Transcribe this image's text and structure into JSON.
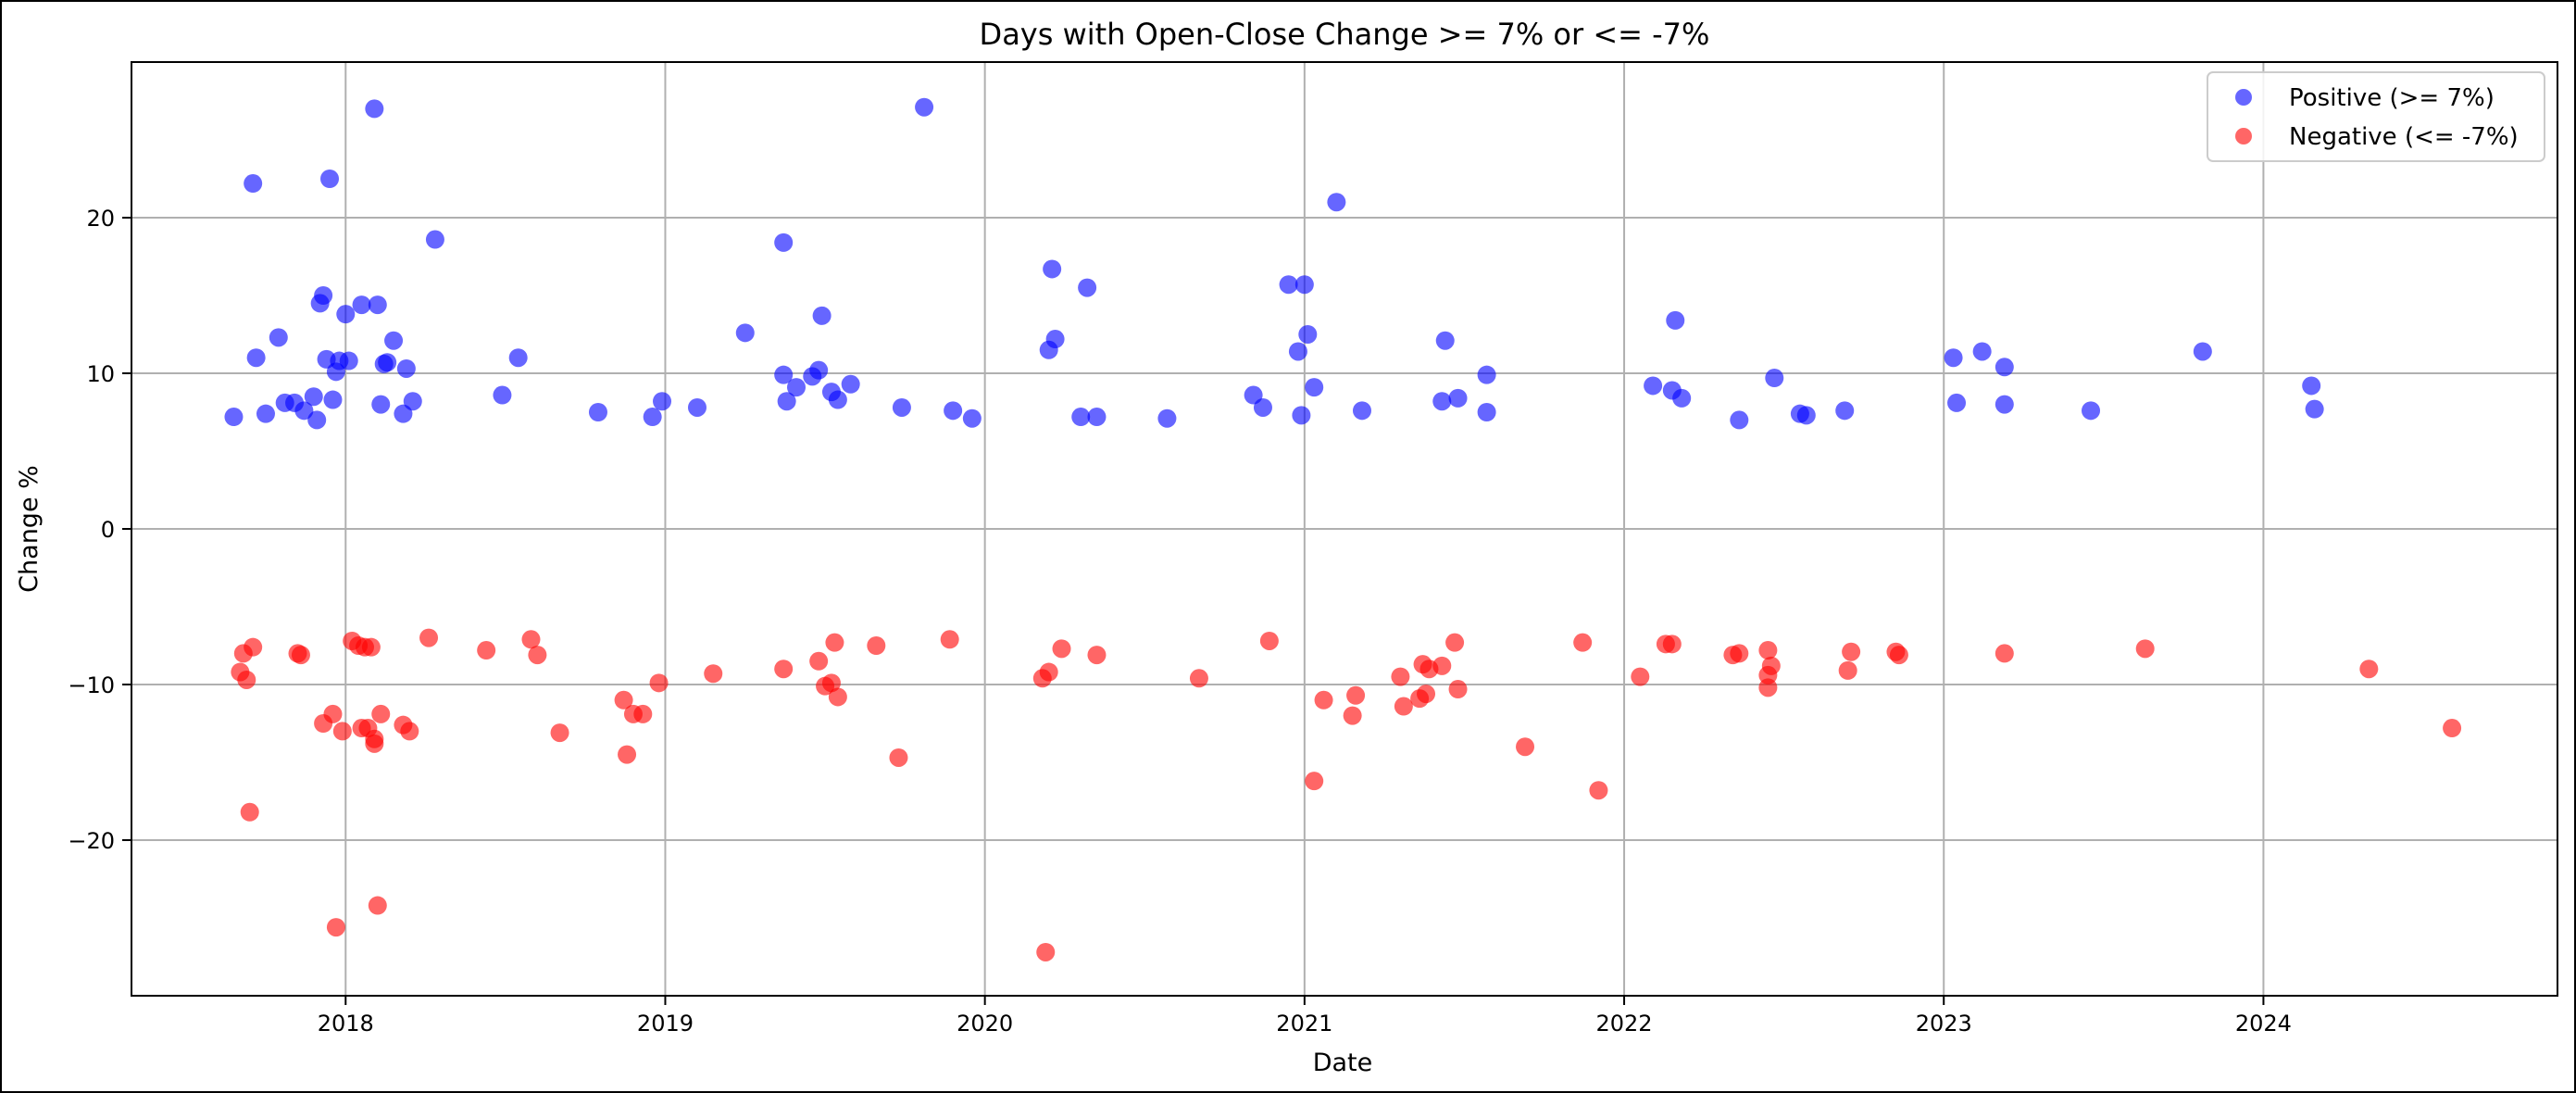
{
  "chart_data": {
    "type": "scatter",
    "title": "Days with Open-Close Change >= 7% or <= -7%",
    "xlabel": "Date",
    "ylabel": "Change %",
    "x_ticks": [
      "2018",
      "2019",
      "2020",
      "2021",
      "2022",
      "2023",
      "2024"
    ],
    "y_ticks": [
      "−20",
      "−10",
      "0",
      "10",
      "20"
    ],
    "y_tick_values": [
      -20,
      -10,
      0,
      10,
      20
    ],
    "xlim": [
      2017.33,
      2024.92
    ],
    "ylim": [
      -30,
      30
    ],
    "grid": true,
    "legend_position": "top-right",
    "series": [
      {
        "name": "Positive (>= 7%)",
        "color": "#0000ff",
        "points": [
          [
            2017.65,
            7.2
          ],
          [
            2017.71,
            22.2
          ],
          [
            2017.72,
            11.0
          ],
          [
            2017.75,
            7.4
          ],
          [
            2017.79,
            12.3
          ],
          [
            2017.81,
            8.1
          ],
          [
            2017.84,
            8.1
          ],
          [
            2017.87,
            7.6
          ],
          [
            2017.9,
            8.5
          ],
          [
            2017.91,
            7.0
          ],
          [
            2017.92,
            14.5
          ],
          [
            2017.93,
            15.0
          ],
          [
            2017.94,
            10.9
          ],
          [
            2017.95,
            22.5
          ],
          [
            2017.96,
            8.3
          ],
          [
            2017.97,
            10.1
          ],
          [
            2017.98,
            10.8
          ],
          [
            2018.0,
            13.8
          ],
          [
            2018.01,
            10.8
          ],
          [
            2018.05,
            14.4
          ],
          [
            2018.09,
            27.0
          ],
          [
            2018.1,
            14.4
          ],
          [
            2018.11,
            8.0
          ],
          [
            2018.12,
            10.6
          ],
          [
            2018.13,
            10.7
          ],
          [
            2018.15,
            12.1
          ],
          [
            2018.18,
            7.4
          ],
          [
            2018.19,
            10.3
          ],
          [
            2018.21,
            8.2
          ],
          [
            2018.28,
            18.6
          ],
          [
            2018.49,
            8.6
          ],
          [
            2018.54,
            11.0
          ],
          [
            2018.79,
            7.5
          ],
          [
            2018.96,
            7.2
          ],
          [
            2018.99,
            8.2
          ],
          [
            2019.1,
            7.8
          ],
          [
            2019.25,
            12.6
          ],
          [
            2019.37,
            18.4
          ],
          [
            2019.37,
            9.9
          ],
          [
            2019.38,
            8.2
          ],
          [
            2019.41,
            9.1
          ],
          [
            2019.46,
            9.8
          ],
          [
            2019.48,
            10.2
          ],
          [
            2019.49,
            13.7
          ],
          [
            2019.52,
            8.8
          ],
          [
            2019.54,
            8.3
          ],
          [
            2019.58,
            9.3
          ],
          [
            2019.74,
            7.8
          ],
          [
            2019.81,
            27.1
          ],
          [
            2019.9,
            7.6
          ],
          [
            2019.96,
            7.1
          ],
          [
            2020.2,
            11.5
          ],
          [
            2020.21,
            16.7
          ],
          [
            2020.22,
            12.2
          ],
          [
            2020.3,
            7.2
          ],
          [
            2020.32,
            15.5
          ],
          [
            2020.35,
            7.2
          ],
          [
            2020.57,
            7.1
          ],
          [
            2020.84,
            8.6
          ],
          [
            2020.87,
            7.8
          ],
          [
            2020.95,
            15.7
          ],
          [
            2020.98,
            11.4
          ],
          [
            2020.99,
            7.3
          ],
          [
            2021.0,
            15.7
          ],
          [
            2021.01,
            12.5
          ],
          [
            2021.03,
            9.1
          ],
          [
            2021.1,
            21.0
          ],
          [
            2021.18,
            7.6
          ],
          [
            2021.43,
            8.2
          ],
          [
            2021.44,
            12.1
          ],
          [
            2021.48,
            8.4
          ],
          [
            2021.57,
            9.9
          ],
          [
            2021.57,
            7.5
          ],
          [
            2022.09,
            9.2
          ],
          [
            2022.15,
            8.9
          ],
          [
            2022.16,
            13.4
          ],
          [
            2022.18,
            8.4
          ],
          [
            2022.36,
            7.0
          ],
          [
            2022.47,
            9.7
          ],
          [
            2022.55,
            7.4
          ],
          [
            2022.57,
            7.3
          ],
          [
            2022.69,
            7.6
          ],
          [
            2023.03,
            11.0
          ],
          [
            2023.04,
            8.1
          ],
          [
            2023.12,
            11.4
          ],
          [
            2023.19,
            10.4
          ],
          [
            2023.19,
            8.0
          ],
          [
            2023.46,
            7.6
          ],
          [
            2023.81,
            11.4
          ],
          [
            2024.15,
            9.2
          ],
          [
            2024.16,
            7.7
          ]
        ]
      },
      {
        "name": "Negative (<= -7%)",
        "color": "#ff0000",
        "points": [
          [
            2017.67,
            -9.2
          ],
          [
            2017.68,
            -8.0
          ],
          [
            2017.69,
            -9.7
          ],
          [
            2017.7,
            -18.2
          ],
          [
            2017.71,
            -7.6
          ],
          [
            2017.85,
            -8.0
          ],
          [
            2017.86,
            -8.1
          ],
          [
            2017.93,
            -12.5
          ],
          [
            2017.96,
            -11.9
          ],
          [
            2017.97,
            -25.6
          ],
          [
            2017.99,
            -13.0
          ],
          [
            2018.02,
            -7.2
          ],
          [
            2018.04,
            -7.5
          ],
          [
            2018.05,
            -12.8
          ],
          [
            2018.06,
            -7.6
          ],
          [
            2018.07,
            -12.8
          ],
          [
            2018.08,
            -7.6
          ],
          [
            2018.09,
            -13.8
          ],
          [
            2018.09,
            -13.5
          ],
          [
            2018.1,
            -24.2
          ],
          [
            2018.11,
            -11.9
          ],
          [
            2018.18,
            -12.6
          ],
          [
            2018.2,
            -13.0
          ],
          [
            2018.26,
            -7.0
          ],
          [
            2018.44,
            -7.8
          ],
          [
            2018.58,
            -7.1
          ],
          [
            2018.6,
            -8.1
          ],
          [
            2018.67,
            -13.1
          ],
          [
            2018.87,
            -11.0
          ],
          [
            2018.88,
            -14.5
          ],
          [
            2018.9,
            -11.9
          ],
          [
            2018.93,
            -11.9
          ],
          [
            2018.98,
            -9.9
          ],
          [
            2019.15,
            -9.3
          ],
          [
            2019.37,
            -9.0
          ],
          [
            2019.48,
            -8.5
          ],
          [
            2019.5,
            -10.1
          ],
          [
            2019.52,
            -9.9
          ],
          [
            2019.53,
            -7.3
          ],
          [
            2019.54,
            -10.8
          ],
          [
            2019.66,
            -7.5
          ],
          [
            2019.73,
            -14.7
          ],
          [
            2019.89,
            -7.1
          ],
          [
            2020.18,
            -9.6
          ],
          [
            2020.19,
            -27.2
          ],
          [
            2020.2,
            -9.2
          ],
          [
            2020.24,
            -7.7
          ],
          [
            2020.35,
            -8.1
          ],
          [
            2020.67,
            -9.6
          ],
          [
            2020.89,
            -7.2
          ],
          [
            2021.03,
            -16.2
          ],
          [
            2021.06,
            -11.0
          ],
          [
            2021.15,
            -12.0
          ],
          [
            2021.16,
            -10.7
          ],
          [
            2021.3,
            -9.5
          ],
          [
            2021.31,
            -11.4
          ],
          [
            2021.36,
            -10.9
          ],
          [
            2021.37,
            -8.7
          ],
          [
            2021.38,
            -10.6
          ],
          [
            2021.39,
            -9.0
          ],
          [
            2021.43,
            -8.8
          ],
          [
            2021.47,
            -7.3
          ],
          [
            2021.48,
            -10.3
          ],
          [
            2021.69,
            -14.0
          ],
          [
            2021.87,
            -7.3
          ],
          [
            2021.92,
            -16.8
          ],
          [
            2022.05,
            -9.5
          ],
          [
            2022.13,
            -7.4
          ],
          [
            2022.15,
            -7.4
          ],
          [
            2022.34,
            -8.1
          ],
          [
            2022.36,
            -8.0
          ],
          [
            2022.45,
            -10.2
          ],
          [
            2022.45,
            -9.4
          ],
          [
            2022.45,
            -7.8
          ],
          [
            2022.46,
            -8.8
          ],
          [
            2022.7,
            -9.1
          ],
          [
            2022.71,
            -7.9
          ],
          [
            2022.85,
            -7.9
          ],
          [
            2022.86,
            -8.1
          ],
          [
            2023.19,
            -8.0
          ],
          [
            2023.63,
            -7.7
          ],
          [
            2024.33,
            -9.0
          ],
          [
            2024.59,
            -12.8
          ]
        ]
      }
    ]
  }
}
